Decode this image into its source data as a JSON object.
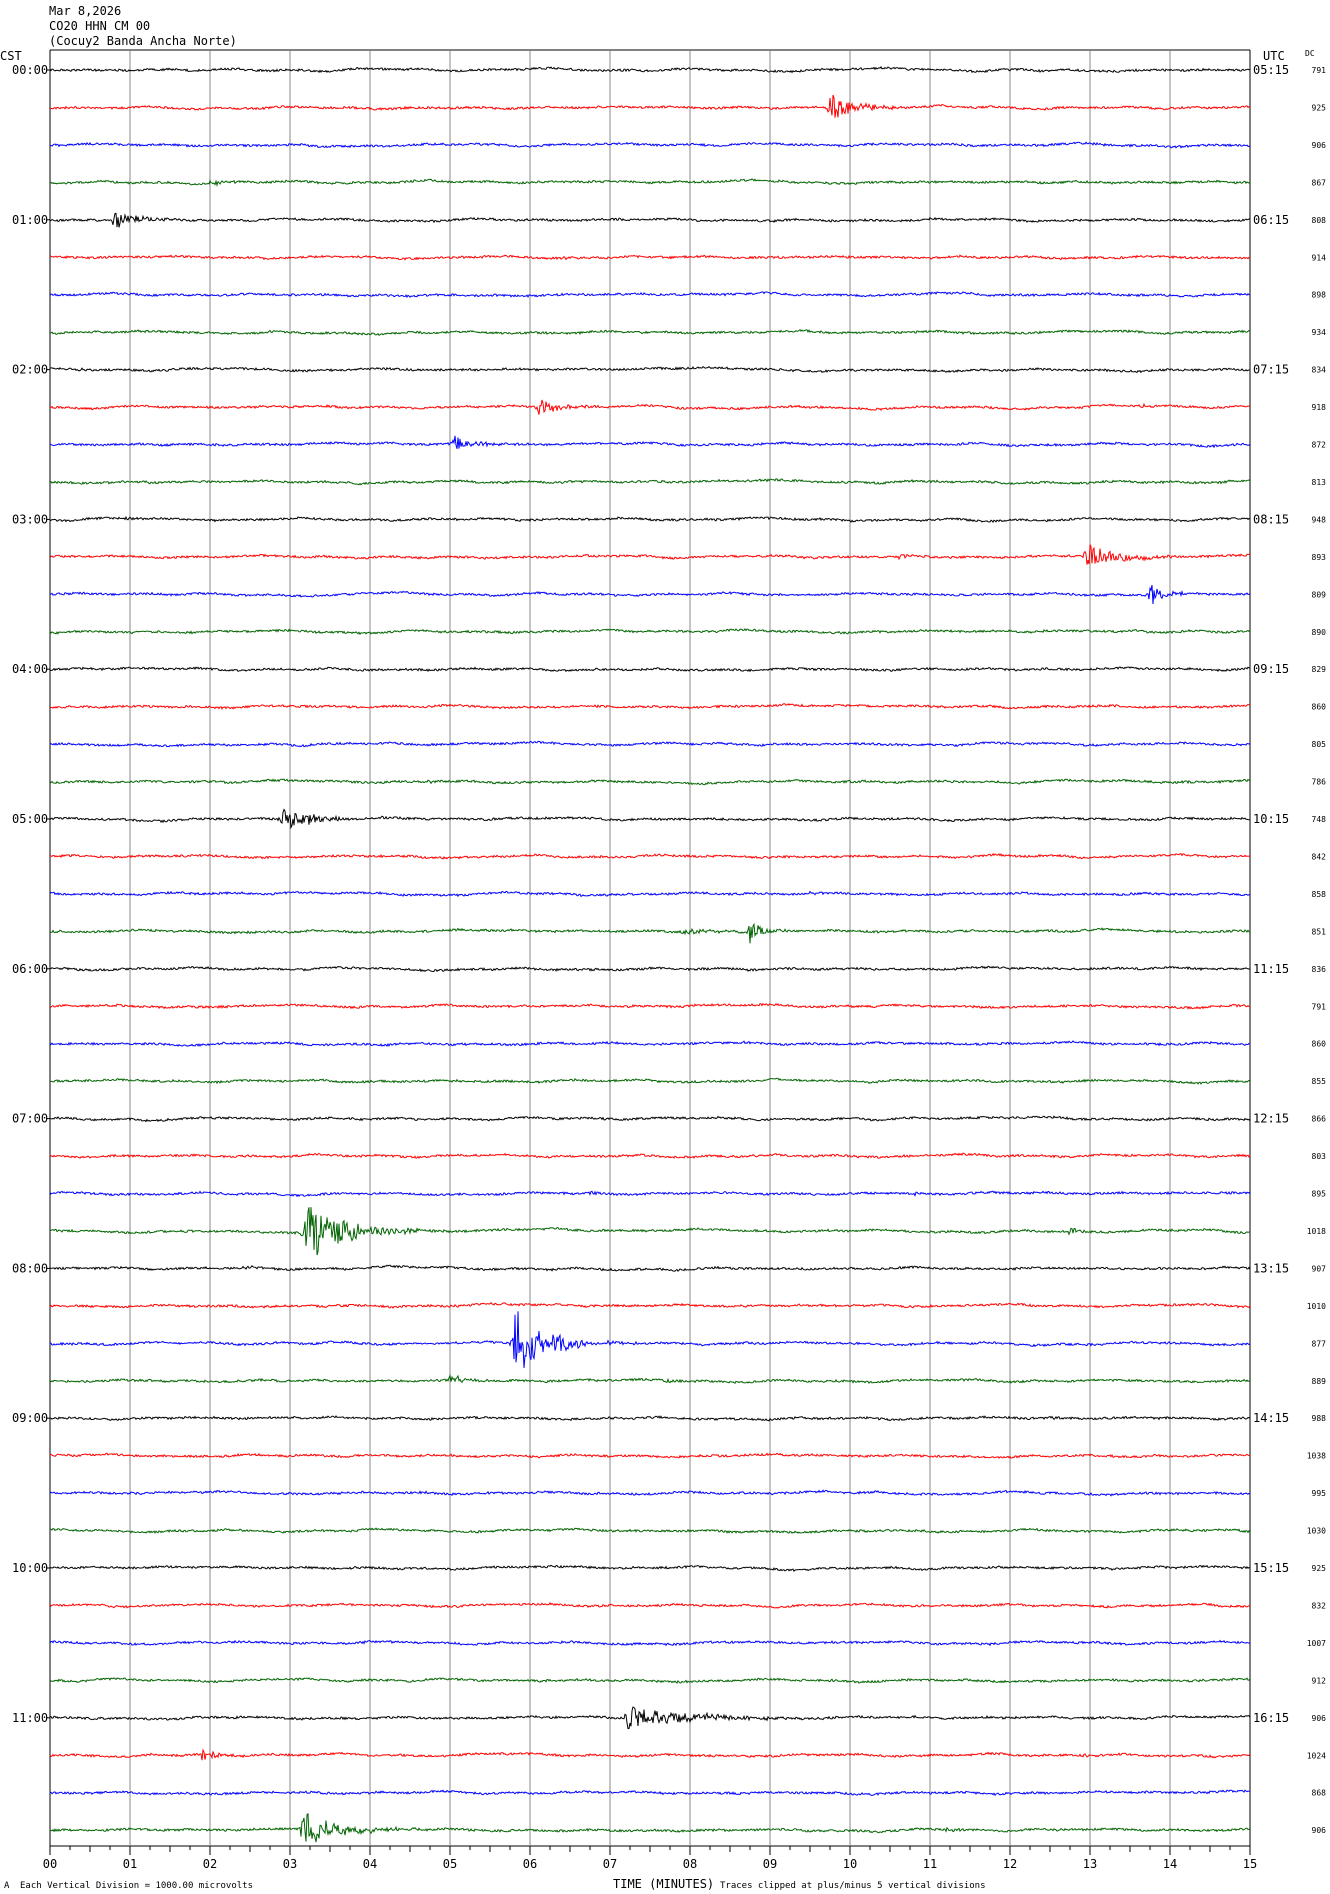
{
  "header": {
    "date": "Mar 8,2026",
    "channel": "CO20 HHN CM 00",
    "station": "(Cocuy2 Banda Ancha Norte)",
    "left_zone": "CST",
    "right_zone": "UTC",
    "dc_header": "DC"
  },
  "footer": {
    "corner_mark": "A",
    "scale_note": "Each Vertical Division = 1000.00 microvolts",
    "clip_note": "Traces clipped at plus/minus 5 vertical divisions"
  },
  "colors": [
    "#000000",
    "#ff0000",
    "#0000ff",
    "#006400"
  ],
  "chart_data": {
    "type": "line",
    "title": "",
    "xlabel": "TIME (MINUTES)",
    "ylabel": "",
    "xlim": [
      0,
      15
    ],
    "x_ticks": [
      "00",
      "01",
      "02",
      "03",
      "04",
      "05",
      "06",
      "07",
      "08",
      "09",
      "10",
      "11",
      "12",
      "13",
      "14",
      "15"
    ],
    "grid": "vertical lines every minute",
    "left_hour_labels": [
      "00:00",
      "01:00",
      "02:00",
      "03:00",
      "04:00",
      "05:00",
      "06:00",
      "07:00",
      "08:00",
      "09:00",
      "10:00",
      "11:00"
    ],
    "right_hour_labels": [
      "05:15",
      "06:15",
      "07:15",
      "08:15",
      "09:15",
      "10:15",
      "11:15",
      "12:15",
      "13:15",
      "14:15",
      "15:15",
      "16:15"
    ],
    "dc_offsets": [
      791,
      925,
      906,
      867,
      808,
      914,
      898,
      934,
      834,
      918,
      872,
      813,
      948,
      893,
      809,
      890,
      829,
      860,
      805,
      786,
      748,
      842,
      858,
      851,
      836,
      791,
      860,
      855,
      866,
      803,
      895,
      1018,
      907,
      1010,
      877,
      889,
      988,
      1038,
      995,
      1030,
      925,
      832,
      1007,
      912,
      906,
      1024,
      868,
      906
    ],
    "events": [
      {
        "row": 1,
        "minute": 9.75,
        "amp": 1.9,
        "dur": 1.0
      },
      {
        "row": 3,
        "minute": 2.0,
        "amp": 0.35,
        "dur": 0.8
      },
      {
        "row": 4,
        "minute": 0.8,
        "amp": 1.3,
        "dur": 0.9
      },
      {
        "row": 5,
        "minute": 6.4,
        "amp": 0.25,
        "dur": 0.5
      },
      {
        "row": 8,
        "minute": 0.4,
        "amp": 0.2,
        "dur": 0.4
      },
      {
        "row": 8,
        "minute": 9.8,
        "amp": 0.2,
        "dur": 0.3
      },
      {
        "row": 9,
        "minute": 6.1,
        "amp": 1.2,
        "dur": 0.8
      },
      {
        "row": 9,
        "minute": 13.6,
        "amp": 0.25,
        "dur": 0.7
      },
      {
        "row": 10,
        "minute": 5.05,
        "amp": 1.2,
        "dur": 0.7
      },
      {
        "row": 12,
        "minute": 0.95,
        "amp": 0.25,
        "dur": 0.4
      },
      {
        "row": 13,
        "minute": 10.6,
        "amp": 0.45,
        "dur": 0.3
      },
      {
        "row": 13,
        "minute": 12.95,
        "amp": 1.8,
        "dur": 1.2
      },
      {
        "row": 14,
        "minute": 13.75,
        "amp": 1.4,
        "dur": 0.6
      },
      {
        "row": 19,
        "minute": 4.7,
        "amp": 0.15,
        "dur": 0.3
      },
      {
        "row": 20,
        "minute": 2.9,
        "amp": 1.9,
        "dur": 1.2
      },
      {
        "row": 22,
        "minute": 9.5,
        "amp": 0.2,
        "dur": 0.6
      },
      {
        "row": 23,
        "minute": 7.9,
        "amp": 0.4,
        "dur": 1.2
      },
      {
        "row": 23,
        "minute": 8.75,
        "amp": 1.5,
        "dur": 0.5
      },
      {
        "row": 30,
        "minute": 6.75,
        "amp": 0.35,
        "dur": 0.2
      },
      {
        "row": 30,
        "minute": 10.8,
        "amp": 0.3,
        "dur": 0.2
      },
      {
        "row": 31,
        "minute": 3.2,
        "amp": 5.0,
        "dur": 1.3
      },
      {
        "row": 31,
        "minute": 4.45,
        "amp": 0.8,
        "dur": 0.3
      },
      {
        "row": 31,
        "minute": 12.75,
        "amp": 0.8,
        "dur": 0.3
      },
      {
        "row": 32,
        "minute": 2.4,
        "amp": 0.15,
        "dur": 0.6
      },
      {
        "row": 34,
        "minute": 5.8,
        "amp": 5.0,
        "dur": 1.2
      },
      {
        "row": 35,
        "minute": 5.0,
        "amp": 0.7,
        "dur": 0.5
      },
      {
        "row": 35,
        "minute": 7.7,
        "amp": 0.5,
        "dur": 0.5
      },
      {
        "row": 36,
        "minute": 12.5,
        "amp": 0.2,
        "dur": 0.8
      },
      {
        "row": 42,
        "minute": 3.9,
        "amp": 0.2,
        "dur": 0.2
      },
      {
        "row": 44,
        "minute": 2.3,
        "amp": 0.25,
        "dur": 0.15
      },
      {
        "row": 44,
        "minute": 7.2,
        "amp": 1.6,
        "dur": 2.5
      },
      {
        "row": 45,
        "minute": 1.9,
        "amp": 0.8,
        "dur": 0.6
      },
      {
        "row": 45,
        "minute": 12.9,
        "amp": 0.15,
        "dur": 0.3
      },
      {
        "row": 47,
        "minute": 3.15,
        "amp": 2.7,
        "dur": 1.3
      },
      {
        "row": 47,
        "minute": 11.2,
        "amp": 0.3,
        "dur": 0.3
      }
    ]
  }
}
